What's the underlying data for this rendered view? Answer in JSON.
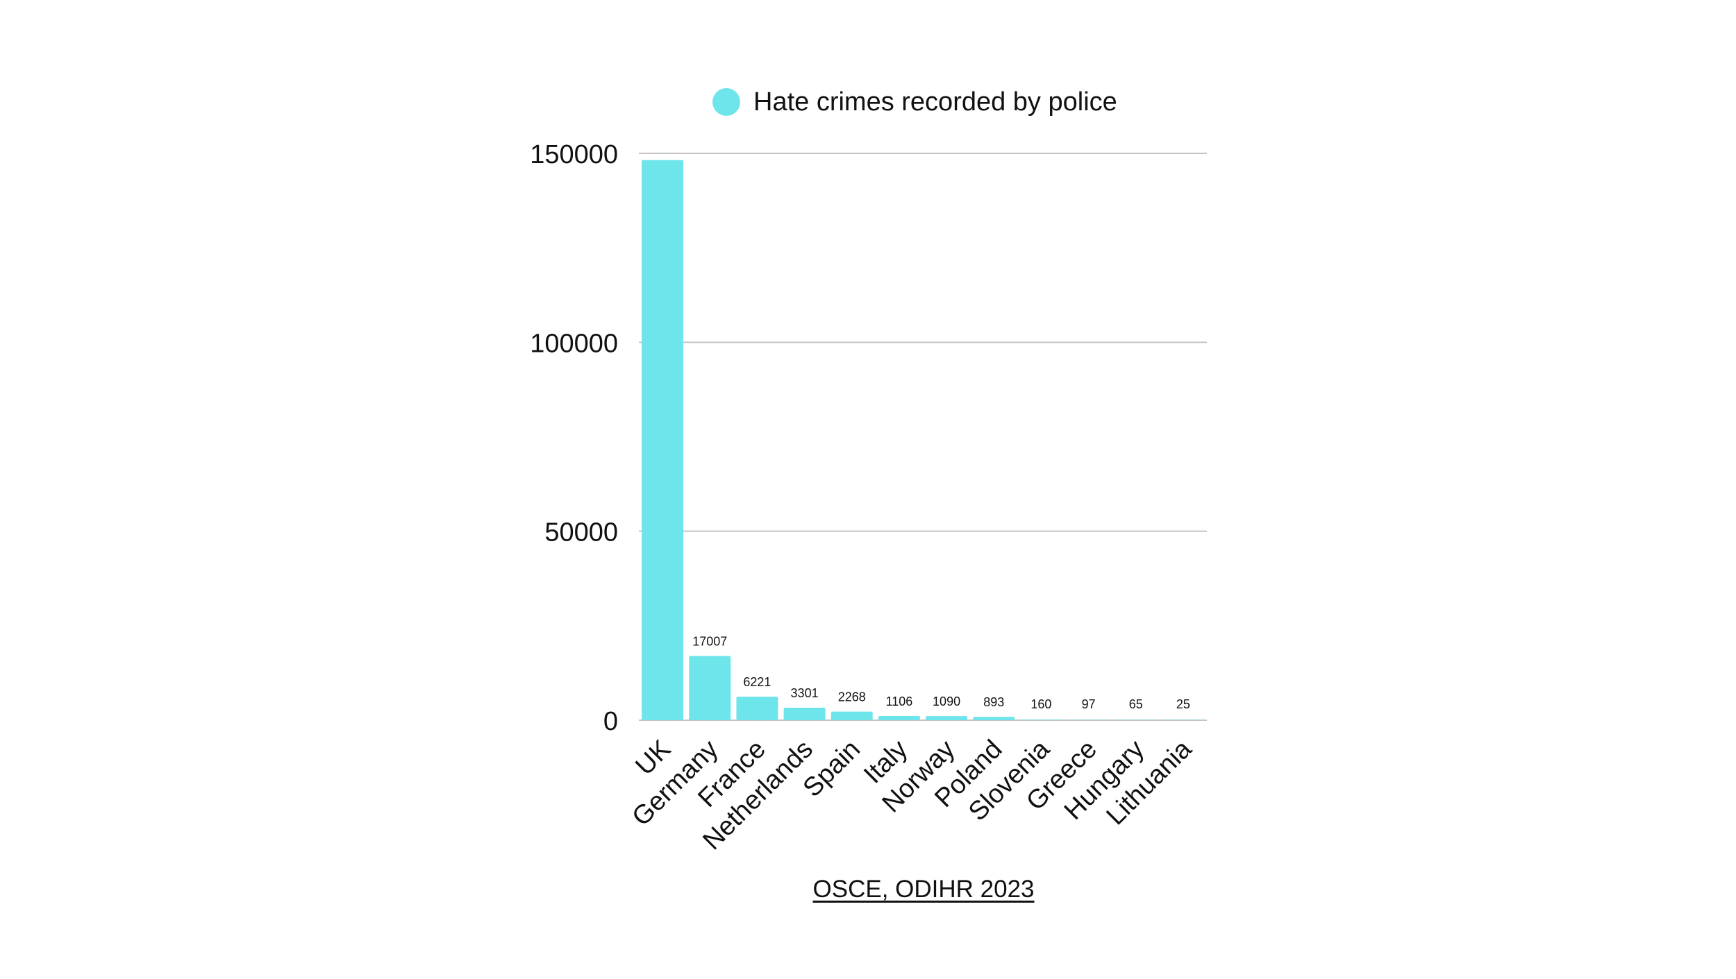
{
  "chart_data": {
    "type": "bar",
    "categories": [
      "UK",
      "Germany",
      "France",
      "Netherlands",
      "Spain",
      "Italy",
      "Norway",
      "Poland",
      "Slovenia",
      "Greece",
      "Hungary",
      "Lithuania"
    ],
    "series": [
      {
        "name": "Hate crimes recorded by police",
        "values": [
          148200,
          17007,
          6221,
          3301,
          2268,
          1106,
          1090,
          893,
          160,
          97,
          65,
          25
        ],
        "data_labels": [
          "",
          "17007",
          "6221",
          "3301",
          "2268",
          "1106",
          "1090",
          "893",
          "160",
          "97",
          "65",
          "25"
        ]
      }
    ],
    "yticks": [
      0,
      50000,
      100000,
      150000
    ],
    "ytick_labels": [
      "0",
      "50000",
      "100000",
      "150000"
    ],
    "ylim": [
      0,
      150000
    ],
    "grid": true,
    "legend_position": "top",
    "bar_color": "#6ee5ea",
    "grid_color": "#c4c4c4"
  },
  "source": {
    "label": "OSCE, ODIHR 2023"
  }
}
